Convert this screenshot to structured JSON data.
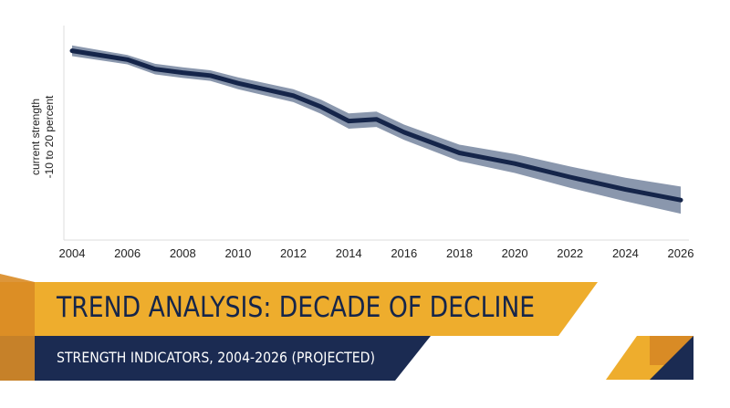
{
  "banner": {
    "title": "TREND ANALYSIS: DECADE OF DECLINE",
    "subtitle": "STRENGTH INDICATORS, 2004-2026 (PROJECTED)"
  },
  "colors": {
    "line": "#15254a",
    "band": "#8a97ad",
    "banner_gold": "#eead2d",
    "banner_navy": "#1b2b52",
    "accent_orange": "#d98b25"
  },
  "chart_data": {
    "type": "line",
    "xlabel": "",
    "ylabel": [
      "current strength",
      "-10 to 20 percent"
    ],
    "x_ticks": [
      "2004",
      "2006",
      "2008",
      "2010",
      "2012",
      "2014",
      "2016",
      "2018",
      "2020",
      "2022",
      "2024",
      "2026"
    ],
    "xlim": [
      2004,
      2026
    ],
    "ylim": [
      -10,
      20
    ],
    "grid": false,
    "series": [
      {
        "x": [
          2004,
          2006,
          2007,
          2008,
          2009,
          2010,
          2012,
          2013,
          2014,
          2015,
          2016,
          2018,
          2020,
          2022,
          2024,
          2026
        ],
        "y": [
          18.2,
          16.7,
          15.1,
          14.5,
          14.0,
          12.7,
          10.6,
          8.7,
          6.3,
          6.6,
          4.4,
          0.9,
          -0.9,
          -3.2,
          -5.3,
          -7.1
        ],
        "band_halfwidth": [
          0.9,
          0.8,
          0.9,
          0.9,
          0.9,
          1.0,
          1.1,
          1.2,
          1.3,
          1.3,
          1.3,
          1.4,
          1.6,
          1.8,
          2.0,
          2.3
        ]
      }
    ]
  }
}
